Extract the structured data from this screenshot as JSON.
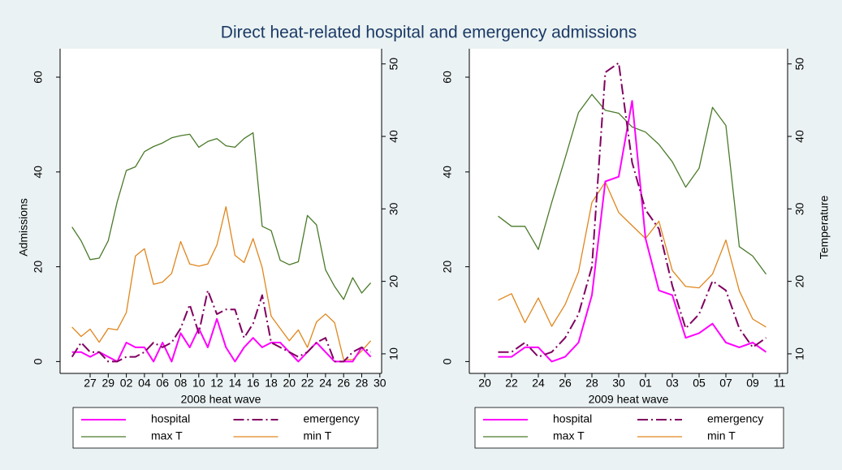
{
  "title": "Direct heat-related hospital and emergency admissions",
  "chart_data": [
    {
      "type": "line",
      "xlabel": "2008 heat wave",
      "ylabel": "Admissions",
      "categories": [
        null,
        null,
        "27",
        null,
        "29",
        null,
        "02",
        null,
        "04",
        null,
        "06",
        null,
        "08",
        null,
        "10",
        null,
        "12",
        null,
        "14",
        null,
        "16",
        null,
        "18",
        null,
        "20",
        null,
        "22",
        null,
        "24",
        null,
        "26",
        null,
        "28",
        null,
        "30"
      ],
      "ylim": [
        -2.5,
        66
      ],
      "yticks": [
        0,
        20,
        40,
        60
      ],
      "y2lim": [
        7.3,
        52.1
      ],
      "y2ticks": [
        10,
        20,
        30,
        40,
        50
      ],
      "series": [
        {
          "name": "hospital",
          "color": "#ff00ff",
          "values": [
            2,
            2,
            1,
            2,
            1,
            0,
            4,
            3,
            3,
            0,
            4,
            0,
            6,
            3,
            7,
            3,
            9,
            3,
            0,
            3,
            5,
            3,
            4,
            4,
            2,
            0,
            2,
            4,
            2,
            0,
            0,
            0,
            3,
            1,
            null
          ]
        },
        {
          "name": "emergency",
          "color": "#800060",
          "values": [
            1,
            4,
            2,
            2,
            0,
            0,
            1,
            1,
            2,
            4,
            3,
            4,
            7,
            12,
            6,
            15,
            10,
            11,
            11,
            5,
            8,
            14,
            4,
            3,
            2,
            1,
            2,
            4,
            5,
            0,
            0,
            2,
            3,
            2,
            null
          ]
        },
        {
          "name": "max T",
          "color": "#4a7a2a",
          "axis": "y2",
          "values": [
            27.5,
            25.6,
            23,
            23.2,
            25.6,
            31,
            35.3,
            35.8,
            37.9,
            38.6,
            39.1,
            39.8,
            40.1,
            40.3,
            38.5,
            39.3,
            39.7,
            38.7,
            38.5,
            39.7,
            40.5,
            27.6,
            27,
            22.9,
            22.3,
            22.7,
            29.1,
            27.8,
            21.6,
            19.3,
            17.5,
            20.5,
            18.4,
            19.8,
            null
          ]
        },
        {
          "name": "min T",
          "color": "#e0861c",
          "axis": "y2",
          "values": [
            13.7,
            12.4,
            13.4,
            11.6,
            13.5,
            13.3,
            15.7,
            23.5,
            24.5,
            19.6,
            19.9,
            21.1,
            25.5,
            22.4,
            22.1,
            22.4,
            25,
            30.3,
            23.6,
            22.6,
            25.9,
            21.9,
            15.2,
            13.5,
            11.8,
            13.3,
            10.9,
            14.4,
            15.5,
            14.3,
            9.2,
            9.2,
            10.4,
            11.8,
            null
          ]
        }
      ]
    },
    {
      "type": "line",
      "xlabel": "2009 heat wave",
      "y2label": "Temperature",
      "categories": [
        "20",
        null,
        "22",
        null,
        "24",
        null,
        "26",
        null,
        "28",
        null,
        "30",
        null,
        "01",
        null,
        "03",
        null,
        "05",
        null,
        "07",
        null,
        "09",
        null,
        "11"
      ],
      "ylim": [
        -2.5,
        66
      ],
      "yticks": [
        0,
        20,
        40,
        60
      ],
      "y2lim": [
        7.3,
        52.1
      ],
      "y2ticks": [
        10,
        20,
        30,
        40,
        50
      ],
      "series": [
        {
          "name": "hospital",
          "color": "#ff00ff",
          "values": [
            null,
            1,
            1,
            3,
            3,
            0,
            1,
            4,
            14,
            38,
            39,
            55,
            26,
            15,
            14,
            5,
            6,
            8,
            4,
            3,
            4,
            2,
            null
          ]
        },
        {
          "name": "emergency",
          "color": "#800060",
          "values": [
            null,
            2,
            2,
            4,
            1,
            2,
            5,
            10,
            20,
            61,
            63,
            42,
            32,
            28,
            16,
            7,
            10,
            17,
            15,
            7,
            3,
            5,
            null
          ]
        },
        {
          "name": "max T",
          "color": "#4a7a2a",
          "axis": "y2",
          "values": [
            null,
            29,
            27.6,
            27.6,
            24.4,
            30.9,
            37,
            43.3,
            45.8,
            43.6,
            43.2,
            41.3,
            40.6,
            38.9,
            36.5,
            33,
            35.6,
            44,
            41.5,
            24.8,
            23.5,
            21,
            null
          ]
        },
        {
          "name": "min T",
          "color": "#e0861c",
          "axis": "y2",
          "values": [
            null,
            17.4,
            18.3,
            14.3,
            17.7,
            13.8,
            16.8,
            21.3,
            30.9,
            33.7,
            29.5,
            27.7,
            25.9,
            28.3,
            21.5,
            19.3,
            19.1,
            21,
            25.7,
            18.7,
            14.8,
            13.7,
            null
          ]
        }
      ]
    }
  ]
}
